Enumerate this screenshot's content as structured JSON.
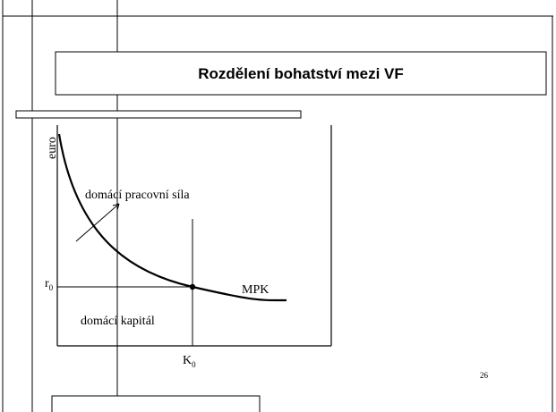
{
  "title": "Rozdělení bohatství mezi VF",
  "diagram": {
    "y_axis_label": "euro",
    "labor_label": "domácí pracovní síla",
    "capital_label": "domácí kapitál",
    "curve_label": "MPK",
    "r_label": {
      "base": "r",
      "sub": "0"
    },
    "k_label": {
      "base": "K",
      "sub": "0"
    }
  },
  "page_number": "26"
}
